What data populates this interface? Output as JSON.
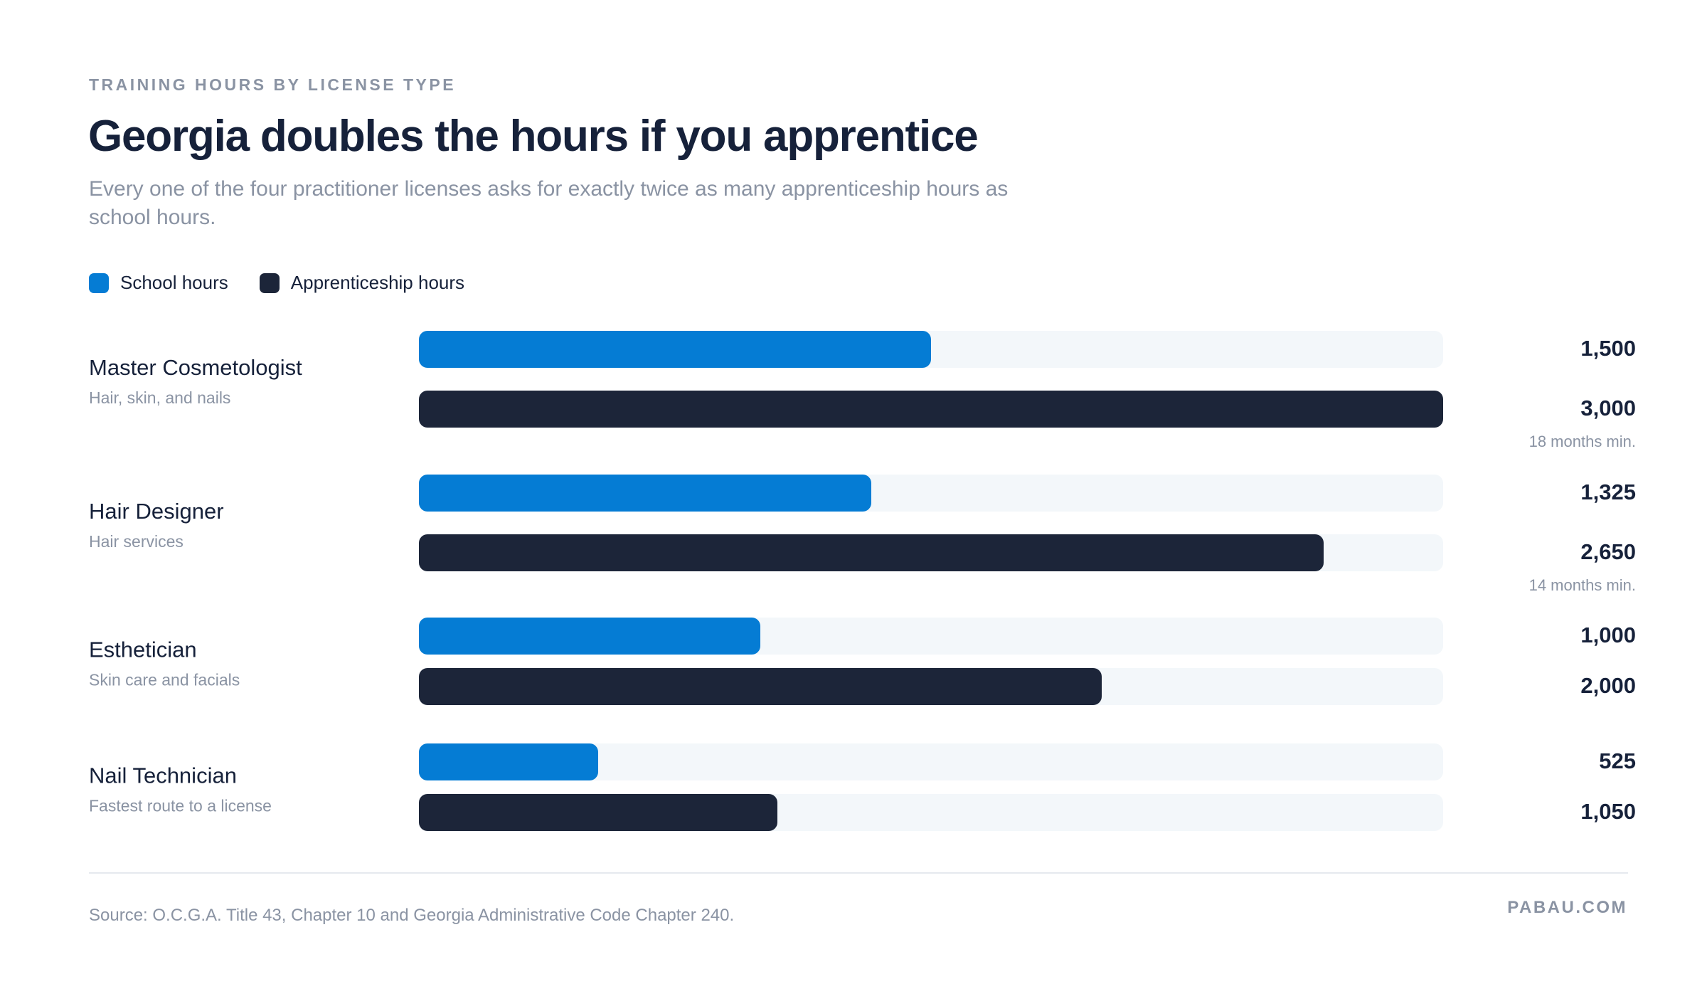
{
  "header": {
    "eyebrow": "TRAINING HOURS BY LICENSE TYPE",
    "title": "Georgia doubles the hours if you apprentice",
    "subtitle": "Every one of the four practitioner licenses asks for exactly twice as many apprenticeship hours as school hours."
  },
  "colors": {
    "school": "#057cd4",
    "apprenticeship": "#1c2539",
    "track": "#f3f7fa",
    "label": "#16213a",
    "muted": "#8a93a3"
  },
  "footer": {
    "source": "Source: O.C.G.A. Title 43, Chapter 10 and Georgia Administrative Code Chapter 240.",
    "brand": "PABAU.COM"
  },
  "chart_data": {
    "type": "bar",
    "orientation": "horizontal",
    "xlim": [
      0,
      3000
    ],
    "grid": false,
    "legend_position": "top-left",
    "categories": [
      "Master Cosmetologist",
      "Hair Designer",
      "Esthetician",
      "Nail Technician"
    ],
    "category_subtitles": [
      "Hair, skin, and nails",
      "Hair services",
      "Skin care and facials",
      "Fastest route to a license"
    ],
    "series": [
      {
        "name": "School hours",
        "values": [
          1500,
          1325,
          1000,
          525
        ],
        "labels": [
          "1,500",
          "1,325",
          "1,000",
          "525"
        ]
      },
      {
        "name": "Apprenticeship hours",
        "values": [
          3000,
          2650,
          2000,
          1050
        ],
        "labels": [
          "3,000",
          "2,650",
          "2,000",
          "1,050"
        ],
        "notes": [
          "18 months min.",
          "14 months min.",
          "",
          ""
        ]
      }
    ]
  }
}
